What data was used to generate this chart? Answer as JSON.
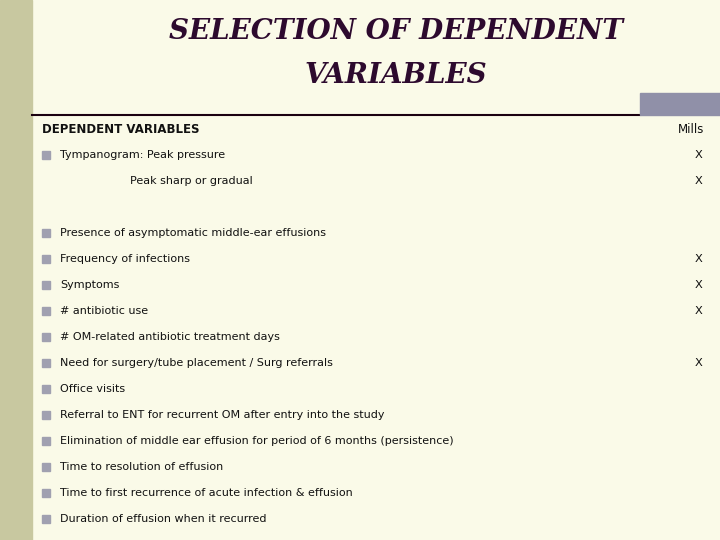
{
  "title_line1": "SELECTION OF DEPENDENT",
  "title_line2": "VARIABLES",
  "title_color": "#2d0a2e",
  "bg_color": "#fafae8",
  "left_bar_color": "#c8c8a0",
  "header_left": "DEPENDENT VARIABLES",
  "header_right": "Mills",
  "separator_color": "#1a0010",
  "gray_box_color": "#9090a8",
  "bullet_color": "#a0a0b0",
  "text_color": "#111111",
  "items": [
    {
      "bullet": true,
      "indent": 0,
      "text": "Tympanogram: Peak pressure",
      "mills": "X"
    },
    {
      "bullet": false,
      "indent": 1,
      "text": "Peak sharp or gradual",
      "mills": "X"
    },
    {
      "bullet": false,
      "indent": 0,
      "text": "",
      "mills": ""
    },
    {
      "bullet": true,
      "indent": 0,
      "text": "Presence of asymptomatic middle-ear effusions",
      "mills": ""
    },
    {
      "bullet": true,
      "indent": 0,
      "text": "Frequency of infections",
      "mills": "X"
    },
    {
      "bullet": true,
      "indent": 0,
      "text": "Symptoms",
      "mills": "X"
    },
    {
      "bullet": true,
      "indent": 0,
      "text": "# antibiotic use",
      "mills": "X"
    },
    {
      "bullet": true,
      "indent": 0,
      "text": "# OM-related antibiotic treatment days",
      "mills": ""
    },
    {
      "bullet": true,
      "indent": 0,
      "text": "Need for surgery/tube placement / Surg referrals",
      "mills": "X"
    },
    {
      "bullet": true,
      "indent": 0,
      "text": "Office visits",
      "mills": ""
    },
    {
      "bullet": true,
      "indent": 0,
      "text": "Referral to ENT for recurrent OM after entry into the study",
      "mills": ""
    },
    {
      "bullet": true,
      "indent": 0,
      "text": "Elimination of middle ear effusion for period of 6 months (persistence)",
      "mills": ""
    },
    {
      "bullet": true,
      "indent": 0,
      "text": "Time to resolution of effusion",
      "mills": ""
    },
    {
      "bullet": true,
      "indent": 0,
      "text": "Time to first recurrence of acute infection & effusion",
      "mills": ""
    },
    {
      "bullet": true,
      "indent": 0,
      "text": "Duration of effusion when it recurred",
      "mills": ""
    }
  ]
}
